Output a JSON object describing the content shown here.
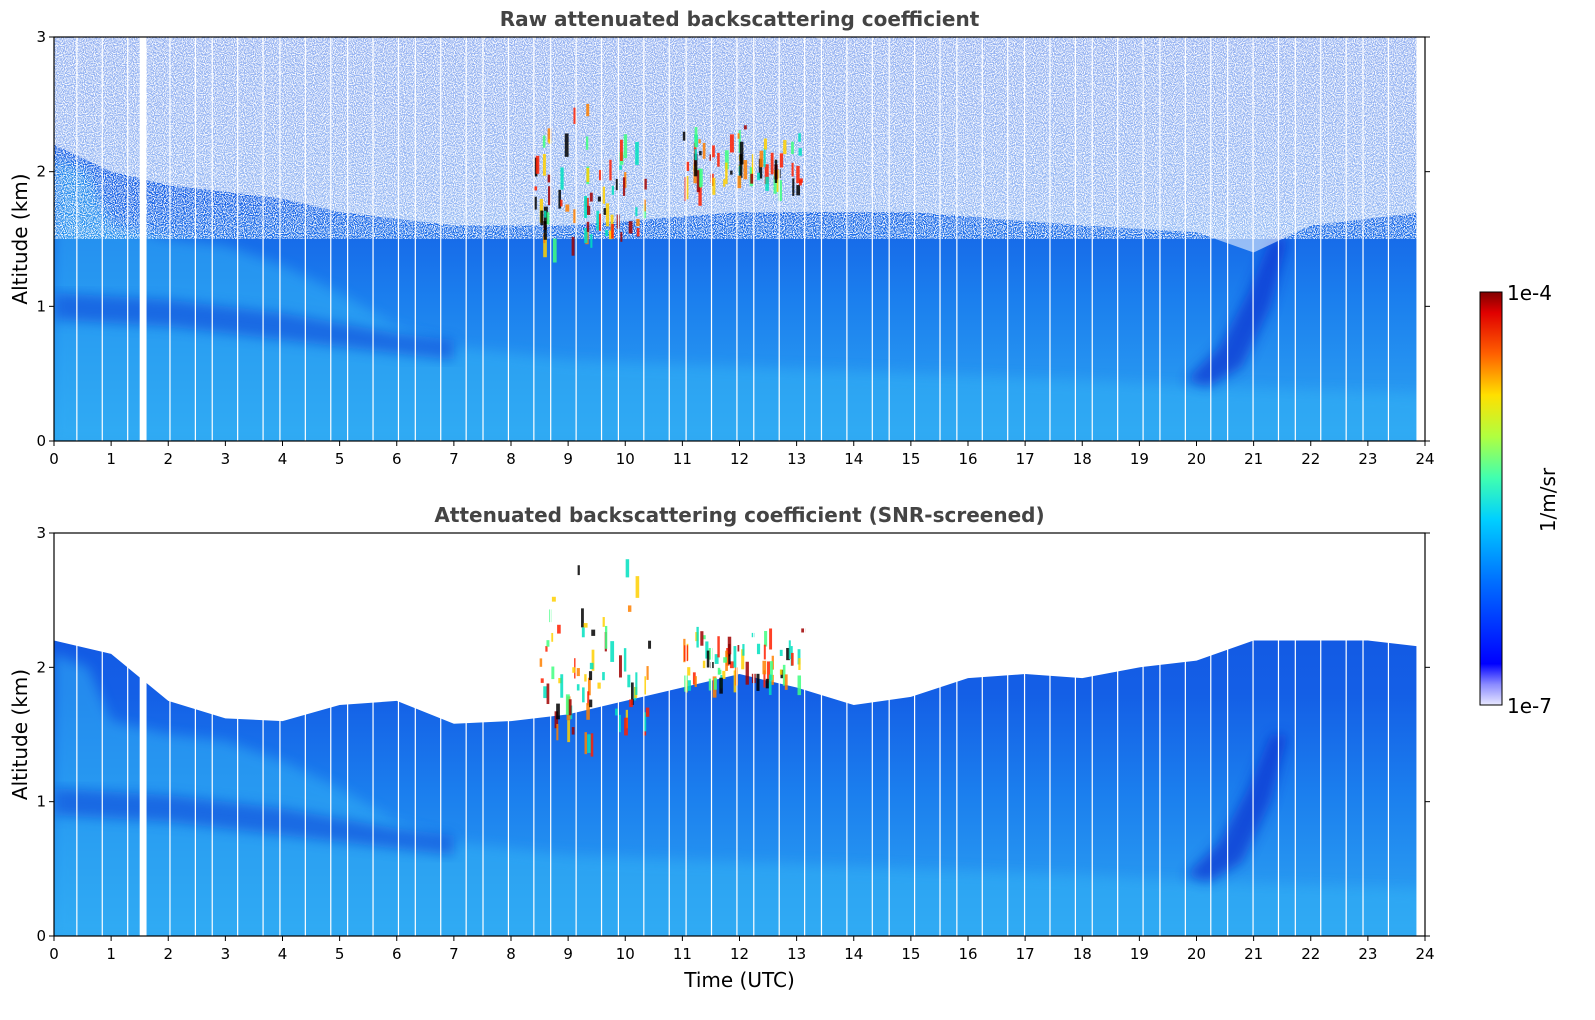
{
  "chart_data": [
    {
      "type": "heatmap",
      "title": "Raw attenuated backscattering coefficient",
      "xlabel": "",
      "ylabel": "Altitude (km)",
      "xlim": [
        0,
        24
      ],
      "ylim": [
        0,
        3
      ],
      "x_ticks": [
        "0",
        "1",
        "2",
        "3",
        "4",
        "5",
        "6",
        "7",
        "8",
        "9",
        "10",
        "11",
        "12",
        "13",
        "14",
        "15",
        "16",
        "17",
        "18",
        "19",
        "20",
        "21",
        "22",
        "23",
        "24"
      ],
      "y_ticks": [
        "0",
        "1",
        "2",
        "3"
      ],
      "screened": false,
      "data_gap_hours": [
        1.5,
        1.62
      ],
      "cloud_features": [
        {
          "x_start": 8.4,
          "x_end": 10.4,
          "alt_low": 1.5,
          "alt_high": 2.6
        },
        {
          "x_start": 11.0,
          "x_end": 13.1,
          "alt_low": 1.9,
          "alt_high": 2.4
        }
      ]
    },
    {
      "type": "heatmap",
      "title": "Attenuated backscattering coefficient (SNR-screened)",
      "xlabel": "Time (UTC)",
      "ylabel": "Altitude (km)",
      "xlim": [
        0,
        24
      ],
      "ylim": [
        0,
        3
      ],
      "x_ticks": [
        "0",
        "1",
        "2",
        "3",
        "4",
        "5",
        "6",
        "7",
        "8",
        "9",
        "10",
        "11",
        "12",
        "13",
        "14",
        "15",
        "16",
        "17",
        "18",
        "19",
        "20",
        "21",
        "22",
        "23",
        "24"
      ],
      "y_ticks": [
        "0",
        "1",
        "2",
        "3"
      ],
      "screened": true,
      "screen_top_km": [
        [
          0,
          2.2
        ],
        [
          1,
          2.1
        ],
        [
          2,
          1.75
        ],
        [
          3,
          1.62
        ],
        [
          4,
          1.6
        ],
        [
          5,
          1.72
        ],
        [
          6,
          1.75
        ],
        [
          7,
          1.58
        ],
        [
          8,
          1.6
        ],
        [
          9,
          1.65
        ],
        [
          10,
          1.75
        ],
        [
          11,
          1.85
        ],
        [
          12,
          1.95
        ],
        [
          13,
          1.85
        ],
        [
          14,
          1.72
        ],
        [
          15,
          1.78
        ],
        [
          16,
          1.92
        ],
        [
          17,
          1.95
        ],
        [
          18,
          1.92
        ],
        [
          19,
          2.0
        ],
        [
          20,
          2.05
        ],
        [
          21,
          2.2
        ],
        [
          22,
          2.2
        ],
        [
          23,
          2.2
        ],
        [
          24,
          2.15
        ]
      ],
      "data_gap_hours": [
        1.5,
        1.62
      ],
      "cloud_features": [
        {
          "x_start": 8.5,
          "x_end": 10.4,
          "alt_low": 1.5,
          "alt_high": 2.9
        },
        {
          "x_start": 11.0,
          "x_end": 13.1,
          "alt_low": 1.9,
          "alt_high": 2.4
        }
      ]
    }
  ],
  "colorbar": {
    "min_label": "1e-7",
    "max_label": "1e-4",
    "unit_label": "1/m/sr",
    "colormap": "jet"
  },
  "colors": {
    "title_color": "#444444",
    "background_blue": "#1a73ee",
    "boundary_layer_blue": "#28a0f0",
    "dark_layer_blue": "#0a4fe0"
  }
}
